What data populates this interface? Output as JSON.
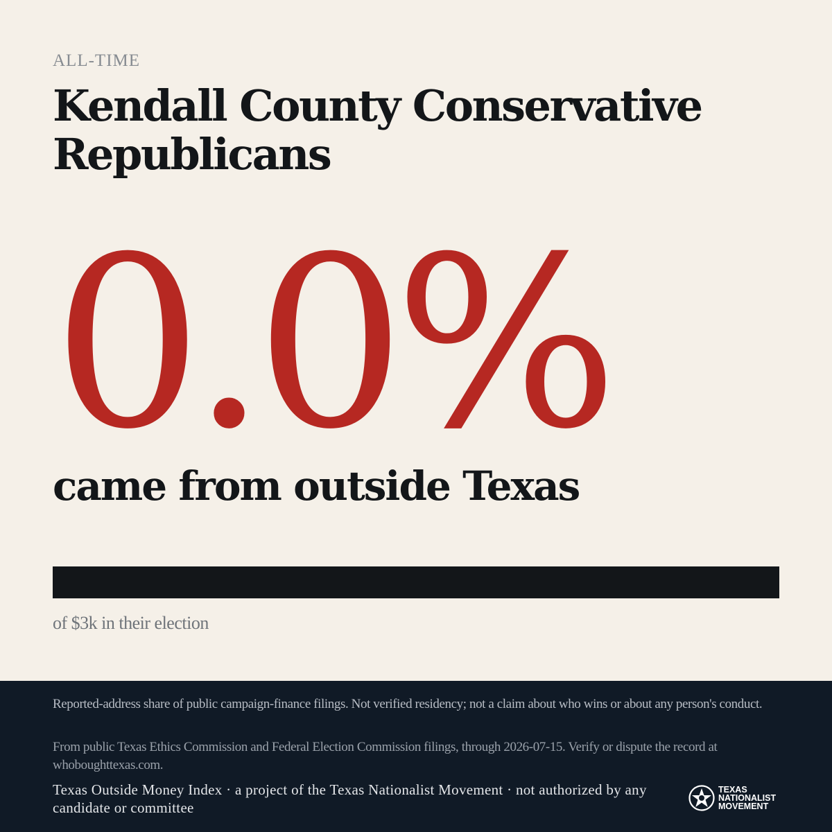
{
  "eyebrow": "ALL-TIME",
  "title": "Kendall County Conservative Republicans",
  "headline": {
    "percent_text": "0.0%",
    "percent_value": 0.0,
    "caption": "came from outside Texas"
  },
  "bar": {
    "fill_fraction": 0.0,
    "fill_color": "#b62822",
    "track_color": "#131619"
  },
  "total_caption": "of $3k in their election",
  "footer": {
    "disclaimer": "Reported-address share of public campaign-finance filings. Not verified residency; not a claim about who wins or about any person's conduct.",
    "source": "From public Texas Ethics Commission and Federal Election Commission filings, through 2026-07-15. Verify or dispute the record at whoboughttexas.com.",
    "credit": "Texas Outside Money Index · a project of the Texas Nationalist Movement · not authorized by any candidate or committee",
    "logo": {
      "icon": "star-seal-icon",
      "line1": "TEXAS",
      "line2": "NATIONALIST",
      "line3": "MOVEMENT"
    }
  },
  "colors": {
    "background": "#f5f0e8",
    "accent": "#b62822",
    "ink": "#131619",
    "footer": "#101a26"
  }
}
